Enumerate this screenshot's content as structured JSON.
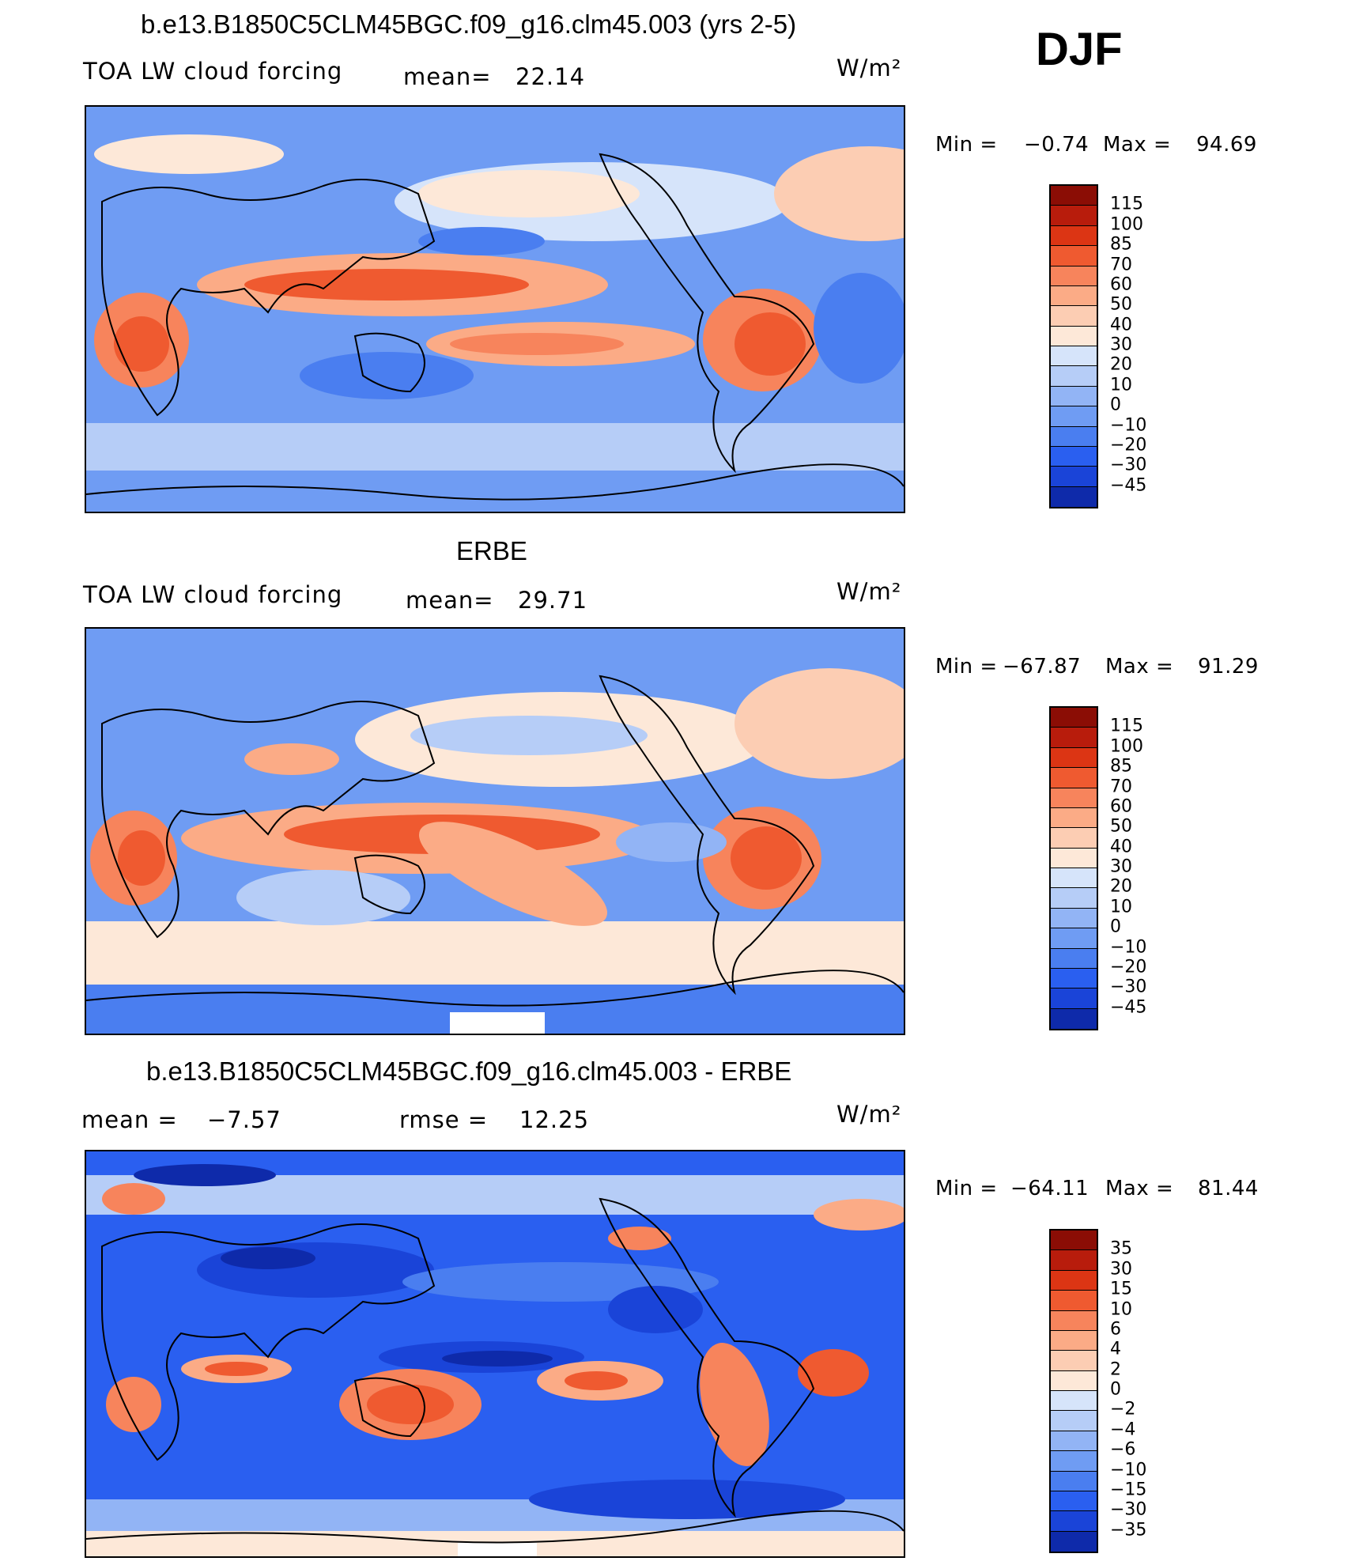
{
  "season_label": "DJF",
  "units": "W/m²",
  "palette_main": [
    "#0d1387",
    "#0e2aaa",
    "#1a44d8",
    "#2a5ff0",
    "#4a7ef0",
    "#6f9cf3",
    "#92b4f5",
    "#b6cdf7",
    "#d6e4fa",
    "#fde8d8",
    "#fccdb3",
    "#fbab86",
    "#f7845c",
    "#ef5a30",
    "#dc3514",
    "#b81c0c",
    "#8b0d05"
  ],
  "palette_diff": [
    "#0d1387",
    "#0e2aaa",
    "#1a44d8",
    "#2a5ff0",
    "#4a7ef0",
    "#6f9cf3",
    "#92b4f5",
    "#b6cdf7",
    "#d6e4fa",
    "#fde8d8",
    "#fccdb3",
    "#fbab86",
    "#f7845c",
    "#ef5a30",
    "#dc3514",
    "#b81c0c",
    "#8b0d05"
  ],
  "panels": [
    {
      "title": "b.e13.B1850C5CLM45BGC.f09_g16.clm45.003 (yrs 2-5)",
      "variable": "TOA LW cloud forcing",
      "stat_a_label": "mean=",
      "stat_a_value": "22.14",
      "stat_b_label": "",
      "stat_b_value": "",
      "units": "W/m²",
      "min_label": "Min =",
      "min_value": "−0.74",
      "max_label": "Max =",
      "max_value": "94.69",
      "colorbar_labels": [
        "115",
        "100",
        "85",
        "70",
        "60",
        "50",
        "40",
        "30",
        "20",
        "10",
        "0",
        "−10",
        "−20",
        "−30",
        "−45"
      ]
    },
    {
      "title": "ERBE",
      "variable": "TOA LW cloud forcing",
      "stat_a_label": "mean=",
      "stat_a_value": "29.71",
      "stat_b_label": "",
      "stat_b_value": "",
      "units": "W/m²",
      "min_label": "Min =",
      "min_value": "−67.87",
      "max_label": "Max =",
      "max_value": "91.29",
      "colorbar_labels": [
        "115",
        "100",
        "85",
        "70",
        "60",
        "50",
        "40",
        "30",
        "20",
        "10",
        "0",
        "−10",
        "−20",
        "−30",
        "−45"
      ]
    },
    {
      "title": "b.e13.B1850C5CLM45BGC.f09_g16.clm45.003 - ERBE",
      "variable": "",
      "stat_a_label": "mean =",
      "stat_a_value": "−7.57",
      "stat_b_label": "rmse =",
      "stat_b_value": "12.25",
      "units": "W/m²",
      "min_label": "Min =",
      "min_value": "−64.11",
      "max_label": "Max =",
      "max_value": "81.44",
      "colorbar_labels": [
        "35",
        "30",
        "15",
        "10",
        "6",
        "4",
        "2",
        "0",
        "−2",
        "−4",
        "−6",
        "−10",
        "−15",
        "−30",
        "−35"
      ]
    }
  ]
}
